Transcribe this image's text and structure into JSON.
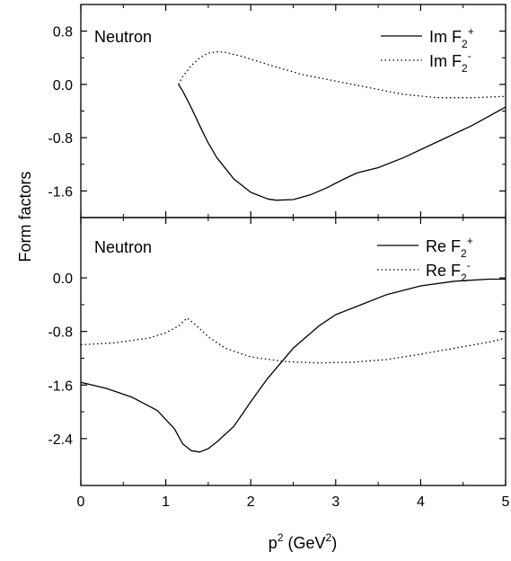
{
  "chart_data": [
    {
      "type": "line",
      "panel_label": "Neutron",
      "xlim": [
        0,
        5
      ],
      "ylim": [
        -2.0,
        1.2
      ],
      "yticks": [
        "0.8",
        "0.0",
        "-0.8",
        "-1.6"
      ],
      "ytick_values": [
        0.8,
        0.0,
        -0.8,
        -1.6
      ],
      "legend_position": "top-right",
      "series": [
        {
          "name_base": "Im F",
          "name_sub": "2",
          "name_sup": "+",
          "style": "solid",
          "x": [
            1.15,
            1.2,
            1.3,
            1.4,
            1.5,
            1.6,
            1.8,
            2.0,
            2.2,
            2.3,
            2.5,
            2.7,
            2.9,
            3.1,
            3.25,
            3.5,
            3.8,
            4.2,
            4.6,
            5.0
          ],
          "y": [
            0.0,
            -0.1,
            -0.35,
            -0.62,
            -0.88,
            -1.1,
            -1.42,
            -1.62,
            -1.72,
            -1.74,
            -1.73,
            -1.66,
            -1.55,
            -1.42,
            -1.33,
            -1.25,
            -1.1,
            -0.86,
            -0.62,
            -0.34
          ]
        },
        {
          "name_base": "Im F",
          "name_sub": "2",
          "name_sup": "-",
          "style": "dotted",
          "x": [
            1.15,
            1.2,
            1.3,
            1.4,
            1.5,
            1.6,
            1.7,
            1.9,
            2.2,
            2.6,
            3.0,
            3.4,
            3.8,
            4.2,
            4.6,
            5.0
          ],
          "y": [
            0.0,
            0.12,
            0.28,
            0.4,
            0.47,
            0.49,
            0.48,
            0.42,
            0.3,
            0.15,
            0.05,
            -0.05,
            -0.15,
            -0.2,
            -0.2,
            -0.18
          ]
        }
      ]
    },
    {
      "type": "line",
      "panel_label": "Neutron",
      "xlim": [
        0,
        5
      ],
      "xticks": [
        "0",
        "1",
        "2",
        "3",
        "4",
        "5"
      ],
      "xtick_values": [
        0,
        1,
        2,
        3,
        4,
        5
      ],
      "ylim": [
        -3.1,
        0.9
      ],
      "yticks": [
        "0.0",
        "-0.8",
        "-1.6",
        "-2.4"
      ],
      "ytick_values": [
        0.0,
        -0.8,
        -1.6,
        -2.4
      ],
      "legend_position": "top-right",
      "series": [
        {
          "name_base": "Re F",
          "name_sub": "2",
          "name_sup": "+",
          "style": "solid",
          "x": [
            0.0,
            0.3,
            0.6,
            0.9,
            1.1,
            1.2,
            1.3,
            1.4,
            1.5,
            1.6,
            1.8,
            2.0,
            2.2,
            2.5,
            2.8,
            3.0,
            3.3,
            3.6,
            4.0,
            4.4,
            4.8,
            5.0
          ],
          "y": [
            -1.56,
            -1.65,
            -1.78,
            -1.98,
            -2.25,
            -2.48,
            -2.58,
            -2.6,
            -2.55,
            -2.45,
            -2.22,
            -1.85,
            -1.5,
            -1.05,
            -0.72,
            -0.55,
            -0.4,
            -0.25,
            -0.12,
            -0.05,
            -0.02,
            -0.02
          ]
        },
        {
          "name_base": "Re F",
          "name_sub": "2",
          "name_sup": "-",
          "style": "dotted",
          "x": [
            0.0,
            0.4,
            0.8,
            1.0,
            1.15,
            1.25,
            1.35,
            1.5,
            1.7,
            2.0,
            2.4,
            2.8,
            3.2,
            3.6,
            4.0,
            4.4,
            4.8,
            5.0
          ],
          "y": [
            -1.0,
            -0.97,
            -0.9,
            -0.82,
            -0.72,
            -0.6,
            -0.7,
            -0.88,
            -1.05,
            -1.18,
            -1.25,
            -1.27,
            -1.26,
            -1.22,
            -1.14,
            -1.05,
            -0.96,
            -0.9
          ]
        }
      ]
    }
  ],
  "axes": {
    "ylabel": "Form factors",
    "xlabel_base": "p",
    "xlabel_sup": "2",
    "xlabel_unit_open": " (GeV",
    "xlabel_unit_sup": "2",
    "xlabel_unit_close": ")"
  }
}
